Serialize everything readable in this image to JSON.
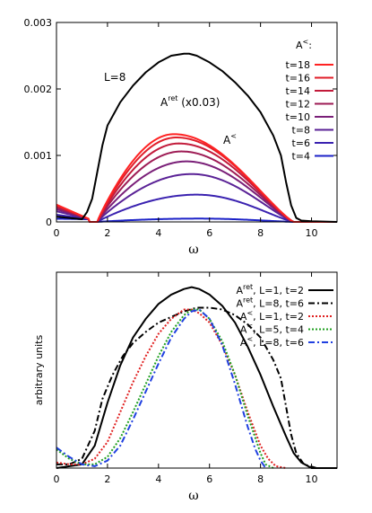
{
  "chart_data": [
    {
      "type": "line",
      "panel": "top",
      "xlabel": "ω",
      "ylabel": "",
      "xlim": [
        0,
        11
      ],
      "ylim": [
        0,
        0.003
      ],
      "x_ticks": [
        "0",
        "2",
        "4",
        "6",
        "8",
        "10"
      ],
      "y_ticks": [
        "0",
        "0.001",
        "0.002",
        "0.003"
      ],
      "grid": false,
      "annotations": {
        "system_size": "L=8",
        "aret_label": "A",
        "aret_sup": "ret",
        "aret_suffix": " (x0.03)",
        "aless_label": "A",
        "aless_sup": "<"
      },
      "legend_title": "A",
      "legend_title_sup": "<",
      "legend_title_suffix": ":",
      "legend_position": "top-right",
      "series": [
        {
          "name": "t=18",
          "color": "#ff2222",
          "style": "solid",
          "peak": 0.00132,
          "x_peak": 4.6
        },
        {
          "name": "t=16",
          "color": "#e01f2a",
          "style": "solid",
          "peak": 0.00127,
          "x_peak": 4.7
        },
        {
          "name": "t=14",
          "color": "#c21a3a",
          "style": "solid",
          "peak": 0.00118,
          "x_peak": 4.8
        },
        {
          "name": "t=12",
          "color": "#9e1c55",
          "style": "solid",
          "peak": 0.00106,
          "x_peak": 4.9
        },
        {
          "name": "t=10",
          "color": "#7a1f78",
          "style": "solid",
          "peak": 0.00091,
          "x_peak": 5.1
        },
        {
          "name": "t=8",
          "color": "#5a2296",
          "style": "solid",
          "peak": 0.00072,
          "x_peak": 5.3
        },
        {
          "name": "t=6",
          "color": "#3a22b0",
          "style": "solid",
          "peak": 0.00041,
          "x_peak": 5.5
        },
        {
          "name": "t=4",
          "color": "#1c22c8",
          "style": "solid",
          "peak": 5e-05,
          "x_peak": 5.6
        }
      ],
      "aret_curve": {
        "color": "#000000",
        "x": [
          1.2,
          1.4,
          1.6,
          1.8,
          2.0,
          2.5,
          3.0,
          3.5,
          4.0,
          4.5,
          5.0,
          5.2,
          5.5,
          6.0,
          6.5,
          7.0,
          7.5,
          8.0,
          8.5,
          8.8,
          9.0,
          9.2,
          9.4,
          9.6,
          10.0,
          11.0
        ],
        "y": [
          0.00015,
          0.00035,
          0.00075,
          0.00115,
          0.00145,
          0.0018,
          0.00205,
          0.00225,
          0.0024,
          0.0025,
          0.00253,
          0.00253,
          0.0025,
          0.0024,
          0.00227,
          0.0021,
          0.0019,
          0.00165,
          0.0013,
          0.001,
          0.0006,
          0.00025,
          6e-05,
          2e-05,
          1e-05,
          0.0
        ]
      }
    },
    {
      "type": "line",
      "panel": "bottom",
      "xlabel": "ω",
      "ylabel": "arbitrary units",
      "xlim": [
        0,
        11
      ],
      "ylim": [
        0,
        1.05
      ],
      "x_ticks": [
        "0",
        "2",
        "4",
        "6",
        "8",
        "10"
      ],
      "grid": false,
      "legend_position": "top-right",
      "series": [
        {
          "name": "A",
          "sup": "ret",
          "suffix": ", L=1, t=2",
          "color": "#000000",
          "style": "solid",
          "x": [
            0,
            1,
            1.5,
            2,
            2.5,
            3,
            3.5,
            4,
            4.5,
            5,
            5.3,
            5.6,
            6,
            6.5,
            7,
            7.5,
            8,
            8.5,
            9,
            9.3,
            9.6,
            10,
            11
          ],
          "y": [
            0.0,
            0.02,
            0.12,
            0.35,
            0.55,
            0.7,
            0.8,
            0.88,
            0.93,
            0.96,
            0.97,
            0.96,
            0.93,
            0.87,
            0.78,
            0.65,
            0.5,
            0.33,
            0.17,
            0.08,
            0.03,
            0.0,
            0.0
          ]
        },
        {
          "name": "A",
          "sup": "ret",
          "suffix": ", L=8, t=6",
          "color": "#000000",
          "style": "dashdot",
          "x": [
            0,
            0.5,
            1,
            1.5,
            1.8,
            2.2,
            2.6,
            3,
            3.5,
            4,
            4.5,
            5,
            5.5,
            6,
            6.5,
            7,
            7.5,
            8,
            8.5,
            8.8,
            9,
            9.2,
            9.4,
            9.7,
            10.2,
            11
          ],
          "y": [
            0.02,
            0.02,
            0.05,
            0.2,
            0.37,
            0.5,
            0.6,
            0.67,
            0.73,
            0.78,
            0.81,
            0.84,
            0.86,
            0.86,
            0.85,
            0.82,
            0.77,
            0.7,
            0.58,
            0.48,
            0.33,
            0.18,
            0.08,
            0.02,
            0.0,
            0.0
          ]
        },
        {
          "name": "A",
          "sup": "<",
          "suffix": ", L=1, t=2",
          "color": "#e02020",
          "style": "dotted",
          "x": [
            0,
            0.5,
            1,
            1.5,
            2,
            2.5,
            3,
            3.5,
            4,
            4.5,
            5,
            5.3,
            5.6,
            6,
            6.5,
            7,
            7.5,
            8,
            8.3,
            8.6,
            9
          ],
          "y": [
            0.03,
            0.02,
            0.02,
            0.05,
            0.14,
            0.3,
            0.46,
            0.6,
            0.72,
            0.8,
            0.85,
            0.85,
            0.83,
            0.78,
            0.66,
            0.5,
            0.3,
            0.12,
            0.05,
            0.01,
            0.0
          ]
        },
        {
          "name": "A",
          "sup": "<",
          "suffix": ", L=5, t=4",
          "color": "#20a020",
          "style": "dotted",
          "x": [
            0,
            0.5,
            1,
            1.5,
            2,
            2.5,
            3,
            3.5,
            4,
            4.5,
            5,
            5.3,
            5.6,
            6,
            6.5,
            7,
            7.5,
            8,
            8.2,
            8.5
          ],
          "y": [
            0.1,
            0.05,
            0.02,
            0.02,
            0.06,
            0.16,
            0.3,
            0.45,
            0.6,
            0.73,
            0.82,
            0.85,
            0.85,
            0.8,
            0.68,
            0.5,
            0.28,
            0.08,
            0.02,
            0.0
          ]
        },
        {
          "name": "A",
          "sup": "<",
          "suffix": ", L=8, t=6",
          "color": "#2040e0",
          "style": "dashdot",
          "x": [
            0,
            0.5,
            1,
            1.5,
            2,
            2.5,
            3,
            3.5,
            4,
            4.5,
            5,
            5.3,
            5.6,
            6,
            6.5,
            7,
            7.5,
            7.8,
            8,
            8.2
          ],
          "y": [
            0.11,
            0.06,
            0.02,
            0.01,
            0.04,
            0.12,
            0.26,
            0.41,
            0.56,
            0.7,
            0.8,
            0.84,
            0.85,
            0.8,
            0.66,
            0.45,
            0.22,
            0.1,
            0.04,
            0.0
          ]
        }
      ]
    }
  ]
}
